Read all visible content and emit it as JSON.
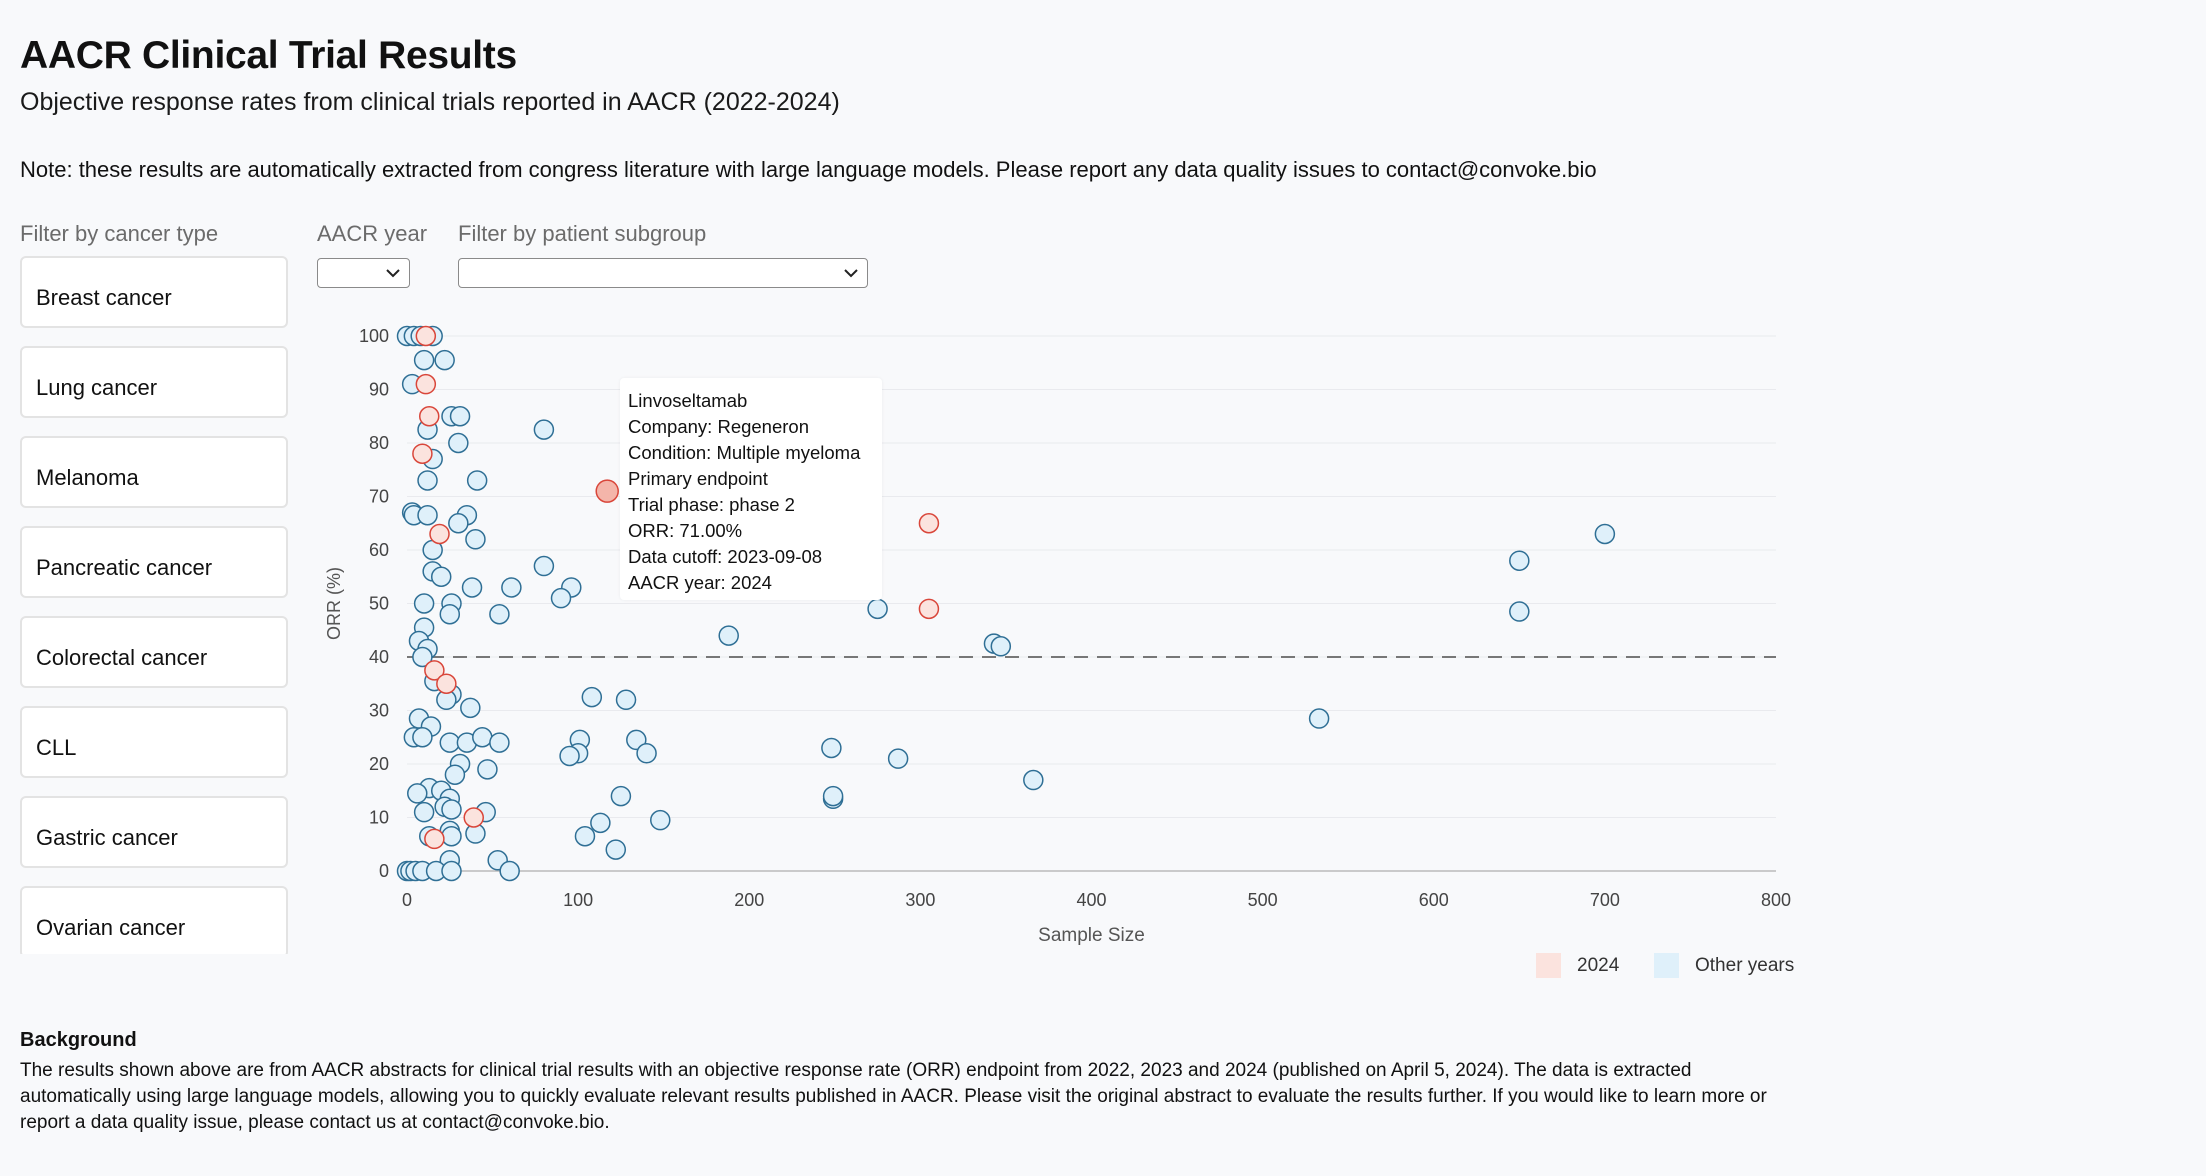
{
  "header": {
    "title": "AACR Clinical Trial Results",
    "subtitle": "Objective response rates from clinical trials reported in AACR (2022-2024)",
    "note": "Note: these results are automatically extracted from congress literature with large language models. Please report any data quality issues to contact@convoke.bio"
  },
  "filters": {
    "cancer_type_label": "Filter by cancer type",
    "cancer_types": [
      "Breast cancer",
      "Lung cancer",
      "Melanoma",
      "Pancreatic cancer",
      "Colorectal cancer",
      "CLL",
      "Gastric cancer",
      "Ovarian cancer"
    ],
    "year_label": "AACR year",
    "year_value": "",
    "subgroup_label": "Filter by patient subgroup",
    "subgroup_value": ""
  },
  "tooltip": {
    "lines": [
      "Linvoseltamab",
      "Company: Regeneron",
      "Condition: Multiple myeloma",
      "Primary endpoint",
      "Trial phase: phase 2",
      "ORR: 71.00%",
      "Data cutoff: 2023-09-08",
      "AACR year: 2024"
    ]
  },
  "legend": {
    "items": [
      {
        "label": "2024",
        "color": "#fbe3de"
      },
      {
        "label": "Other years",
        "color": "#dff0fa"
      }
    ]
  },
  "background": {
    "title": "Background",
    "text": "The results shown above are from AACR abstracts for clinical trial results with an objective response rate (ORR) endpoint from 2022, 2023 and 2024 (published on April 5, 2024). The data is extracted automatically using large language models, allowing you to quickly evaluate relevant results published in AACR. Please visit the original abstract to evaluate the results further. If you would like to learn more or report a data quality issue, please contact us at contact@convoke.bio."
  },
  "colors": {
    "other_fill": "#dff0fa",
    "other_stroke": "#2f6f95",
    "y2024_fill": "#fbe3de",
    "y2024_stroke": "#d9463a",
    "y2024_highlight_fill": "#f4b5aa"
  },
  "chart_data": {
    "type": "scatter",
    "xlabel": "Sample Size",
    "ylabel": "ORR (%)",
    "xlim": [
      0,
      800
    ],
    "ylim": [
      0,
      100
    ],
    "x_ticks": [
      0,
      100,
      200,
      300,
      400,
      500,
      600,
      700,
      800
    ],
    "y_ticks": [
      0,
      10,
      20,
      30,
      40,
      50,
      60,
      70,
      80,
      90,
      100
    ],
    "reference_line_y": 40,
    "grid": "horizontal",
    "legend_position": "bottom-right",
    "highlighted_point": {
      "x": 117,
      "y": 71
    },
    "series": [
      {
        "name": "2024",
        "points": [
          [
            11,
            100
          ],
          [
            11,
            91
          ],
          [
            13,
            85
          ],
          [
            9,
            78
          ],
          [
            19,
            63
          ],
          [
            16,
            37.5
          ],
          [
            23,
            35
          ],
          [
            39,
            10
          ],
          [
            16,
            6
          ],
          [
            117,
            71
          ],
          [
            305,
            65
          ],
          [
            305,
            49
          ]
        ]
      },
      {
        "name": "Other years",
        "points": [
          [
            0,
            100
          ],
          [
            4,
            100
          ],
          [
            8,
            100
          ],
          [
            15,
            100
          ],
          [
            10,
            95.5
          ],
          [
            22,
            95.5
          ],
          [
            3,
            91
          ],
          [
            26,
            85
          ],
          [
            31,
            85
          ],
          [
            12,
            82.5
          ],
          [
            80,
            82.5
          ],
          [
            30,
            80
          ],
          [
            15,
            77
          ],
          [
            41,
            73
          ],
          [
            12,
            73
          ],
          [
            3,
            67
          ],
          [
            4,
            66.5
          ],
          [
            12,
            66.5
          ],
          [
            35,
            66.5
          ],
          [
            30,
            65
          ],
          [
            40,
            62
          ],
          [
            15,
            60
          ],
          [
            80,
            57
          ],
          [
            15,
            56
          ],
          [
            20,
            55
          ],
          [
            61,
            53
          ],
          [
            38,
            53
          ],
          [
            96,
            53
          ],
          [
            90,
            51
          ],
          [
            10,
            50
          ],
          [
            26,
            50
          ],
          [
            25,
            48
          ],
          [
            54,
            48
          ],
          [
            10,
            45.5
          ],
          [
            7,
            43
          ],
          [
            12,
            41.5
          ],
          [
            9,
            40
          ],
          [
            188,
            44
          ],
          [
            275,
            49
          ],
          [
            343,
            42.5
          ],
          [
            347,
            42
          ],
          [
            650,
            58
          ],
          [
            650,
            48.5
          ],
          [
            700,
            63
          ],
          [
            16,
            35.5
          ],
          [
            26,
            33
          ],
          [
            23,
            32
          ],
          [
            37,
            30.5
          ],
          [
            108,
            32.5
          ],
          [
            128,
            32
          ],
          [
            7,
            28.5
          ],
          [
            14,
            27
          ],
          [
            4,
            25
          ],
          [
            9,
            25
          ],
          [
            25,
            24
          ],
          [
            35,
            24
          ],
          [
            44,
            25
          ],
          [
            54,
            24
          ],
          [
            101,
            24.5
          ],
          [
            134,
            24.5
          ],
          [
            140,
            22
          ],
          [
            100,
            22
          ],
          [
            95,
            21.5
          ],
          [
            248,
            23
          ],
          [
            287,
            21
          ],
          [
            533,
            28.5
          ],
          [
            31,
            20
          ],
          [
            47,
            19
          ],
          [
            28,
            18
          ],
          [
            366,
            17
          ],
          [
            13,
            15.5
          ],
          [
            20,
            15
          ],
          [
            6,
            14.5
          ],
          [
            25,
            13.5
          ],
          [
            125,
            14
          ],
          [
            249,
            13.5
          ],
          [
            249,
            14
          ],
          [
            22,
            12
          ],
          [
            10,
            11
          ],
          [
            46,
            11
          ],
          [
            26,
            11.5
          ],
          [
            148,
            9.5
          ],
          [
            113,
            9
          ],
          [
            104,
            6.5
          ],
          [
            13,
            6.5
          ],
          [
            25,
            7.5
          ],
          [
            26,
            6.5
          ],
          [
            40,
            7
          ],
          [
            122,
            4
          ],
          [
            25,
            2
          ],
          [
            53,
            2
          ],
          [
            0,
            0
          ],
          [
            2,
            0
          ],
          [
            5,
            0
          ],
          [
            9,
            0
          ],
          [
            17,
            0
          ],
          [
            26,
            0
          ],
          [
            60,
            0
          ]
        ]
      }
    ]
  }
}
